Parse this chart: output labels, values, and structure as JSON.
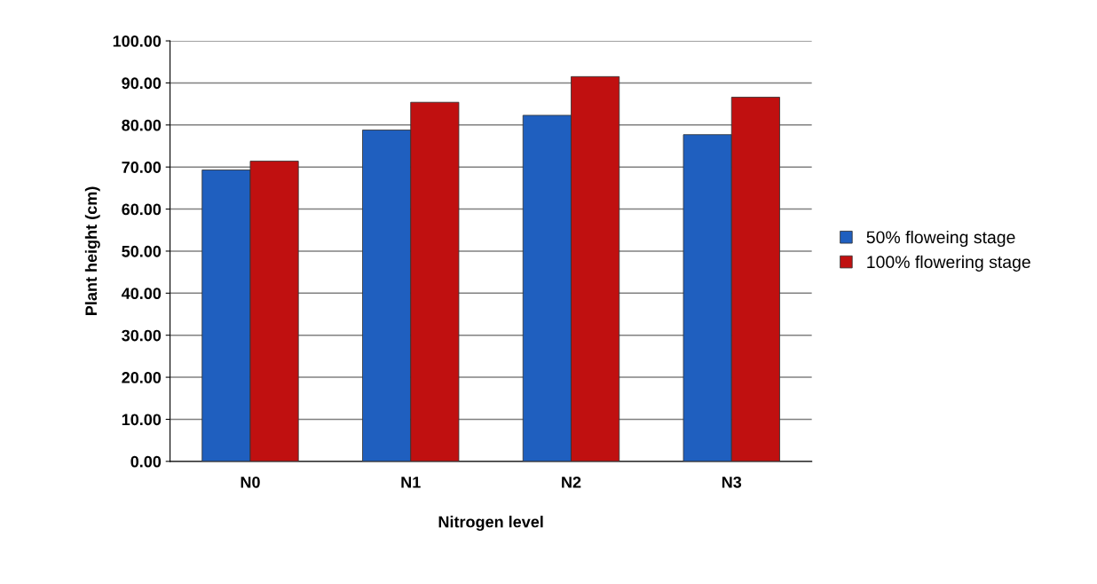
{
  "chart_data": {
    "type": "bar",
    "xlabel": "Nitrogen level",
    "ylabel": "Plant height (cm)",
    "categories": [
      "N0",
      "N1",
      "N2",
      "N3"
    ],
    "series": [
      {
        "name": "50% floweing stage",
        "color": "#1f5fbf",
        "values": [
          69.3,
          78.8,
          82.3,
          77.7
        ]
      },
      {
        "name": "100% flowering stage",
        "color": "#c01010",
        "values": [
          71.4,
          85.4,
          91.5,
          86.6
        ]
      }
    ],
    "ylim": [
      0,
      100
    ],
    "yticks": [
      {
        "value": 0,
        "label": "0.00"
      },
      {
        "value": 10,
        "label": "10.00"
      },
      {
        "value": 20,
        "label": "20.00"
      },
      {
        "value": 30,
        "label": "30.00"
      },
      {
        "value": 40,
        "label": "40.00"
      },
      {
        "value": 50,
        "label": "50.00"
      },
      {
        "value": 60,
        "label": "60.00"
      },
      {
        "value": 70,
        "label": "70.00"
      },
      {
        "value": 80,
        "label": "80.00"
      },
      {
        "value": 90,
        "label": "90.00"
      },
      {
        "value": 100,
        "label": "100.00"
      }
    ],
    "grid": "y",
    "legend": "right"
  }
}
